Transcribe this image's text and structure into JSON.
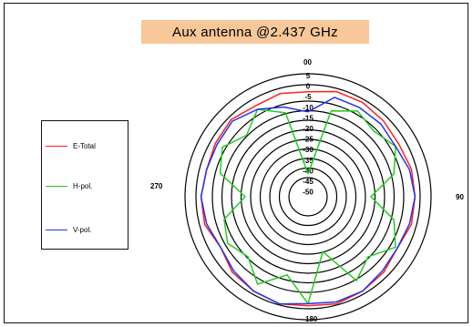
{
  "chart_data": {
    "type": "polar-line",
    "title": "Aux antenna @2.437 GHz",
    "direction_labels": {
      "top": "00",
      "left": "270",
      "right": "90",
      "bottom": "180"
    },
    "radial_ticks": [
      "5",
      "0",
      "-5",
      "-10",
      "-15",
      "-20",
      "-25",
      "-30",
      "-35",
      "-40",
      "-45",
      "-50"
    ],
    "radial_range": [
      -50,
      5
    ],
    "legend_position": "left",
    "series": [
      {
        "name": "E-Total",
        "color": "#ff2020",
        "angles_deg": [
          0,
          15,
          30,
          45,
          60,
          75,
          90,
          105,
          120,
          135,
          150,
          165,
          180,
          195,
          210,
          225,
          240,
          255,
          270,
          285,
          300,
          315,
          330,
          345
        ],
        "values": [
          -4,
          -2,
          -2,
          -3,
          -4,
          -3,
          -3,
          -3,
          -5,
          -3,
          -2,
          -1,
          -2,
          -1,
          -2,
          -3,
          -6,
          -3,
          -3,
          -4,
          -3,
          -2,
          -4,
          -3
        ]
      },
      {
        "name": "H-pol.",
        "color": "#22cc22",
        "angles_deg": [
          0,
          15,
          30,
          45,
          60,
          75,
          90,
          105,
          120,
          135,
          150,
          165,
          180,
          195,
          210,
          225,
          240,
          255,
          270,
          285,
          300,
          315,
          330,
          345
        ],
        "values": [
          -45,
          -12,
          -7,
          -10,
          -6,
          -12,
          -25,
          -12,
          -6,
          -14,
          -8,
          -28,
          -3,
          -16,
          -6,
          -14,
          -10,
          -13,
          -25,
          -11,
          -7,
          -13,
          -6,
          -13
        ]
      },
      {
        "name": "V-pol.",
        "color": "#2233ee",
        "angles_deg": [
          0,
          15,
          30,
          45,
          60,
          75,
          90,
          105,
          120,
          135,
          150,
          165,
          180,
          195,
          210,
          225,
          240,
          255,
          270,
          285,
          300,
          315,
          330,
          345
        ],
        "values": [
          -14,
          -5,
          -5,
          -5,
          -6,
          -4,
          -3,
          -4,
          -5,
          -4,
          -2,
          -2,
          -3,
          -1,
          -2,
          -4,
          -6,
          -4,
          -3,
          -4,
          -4,
          -3,
          -6,
          -10
        ]
      }
    ]
  }
}
